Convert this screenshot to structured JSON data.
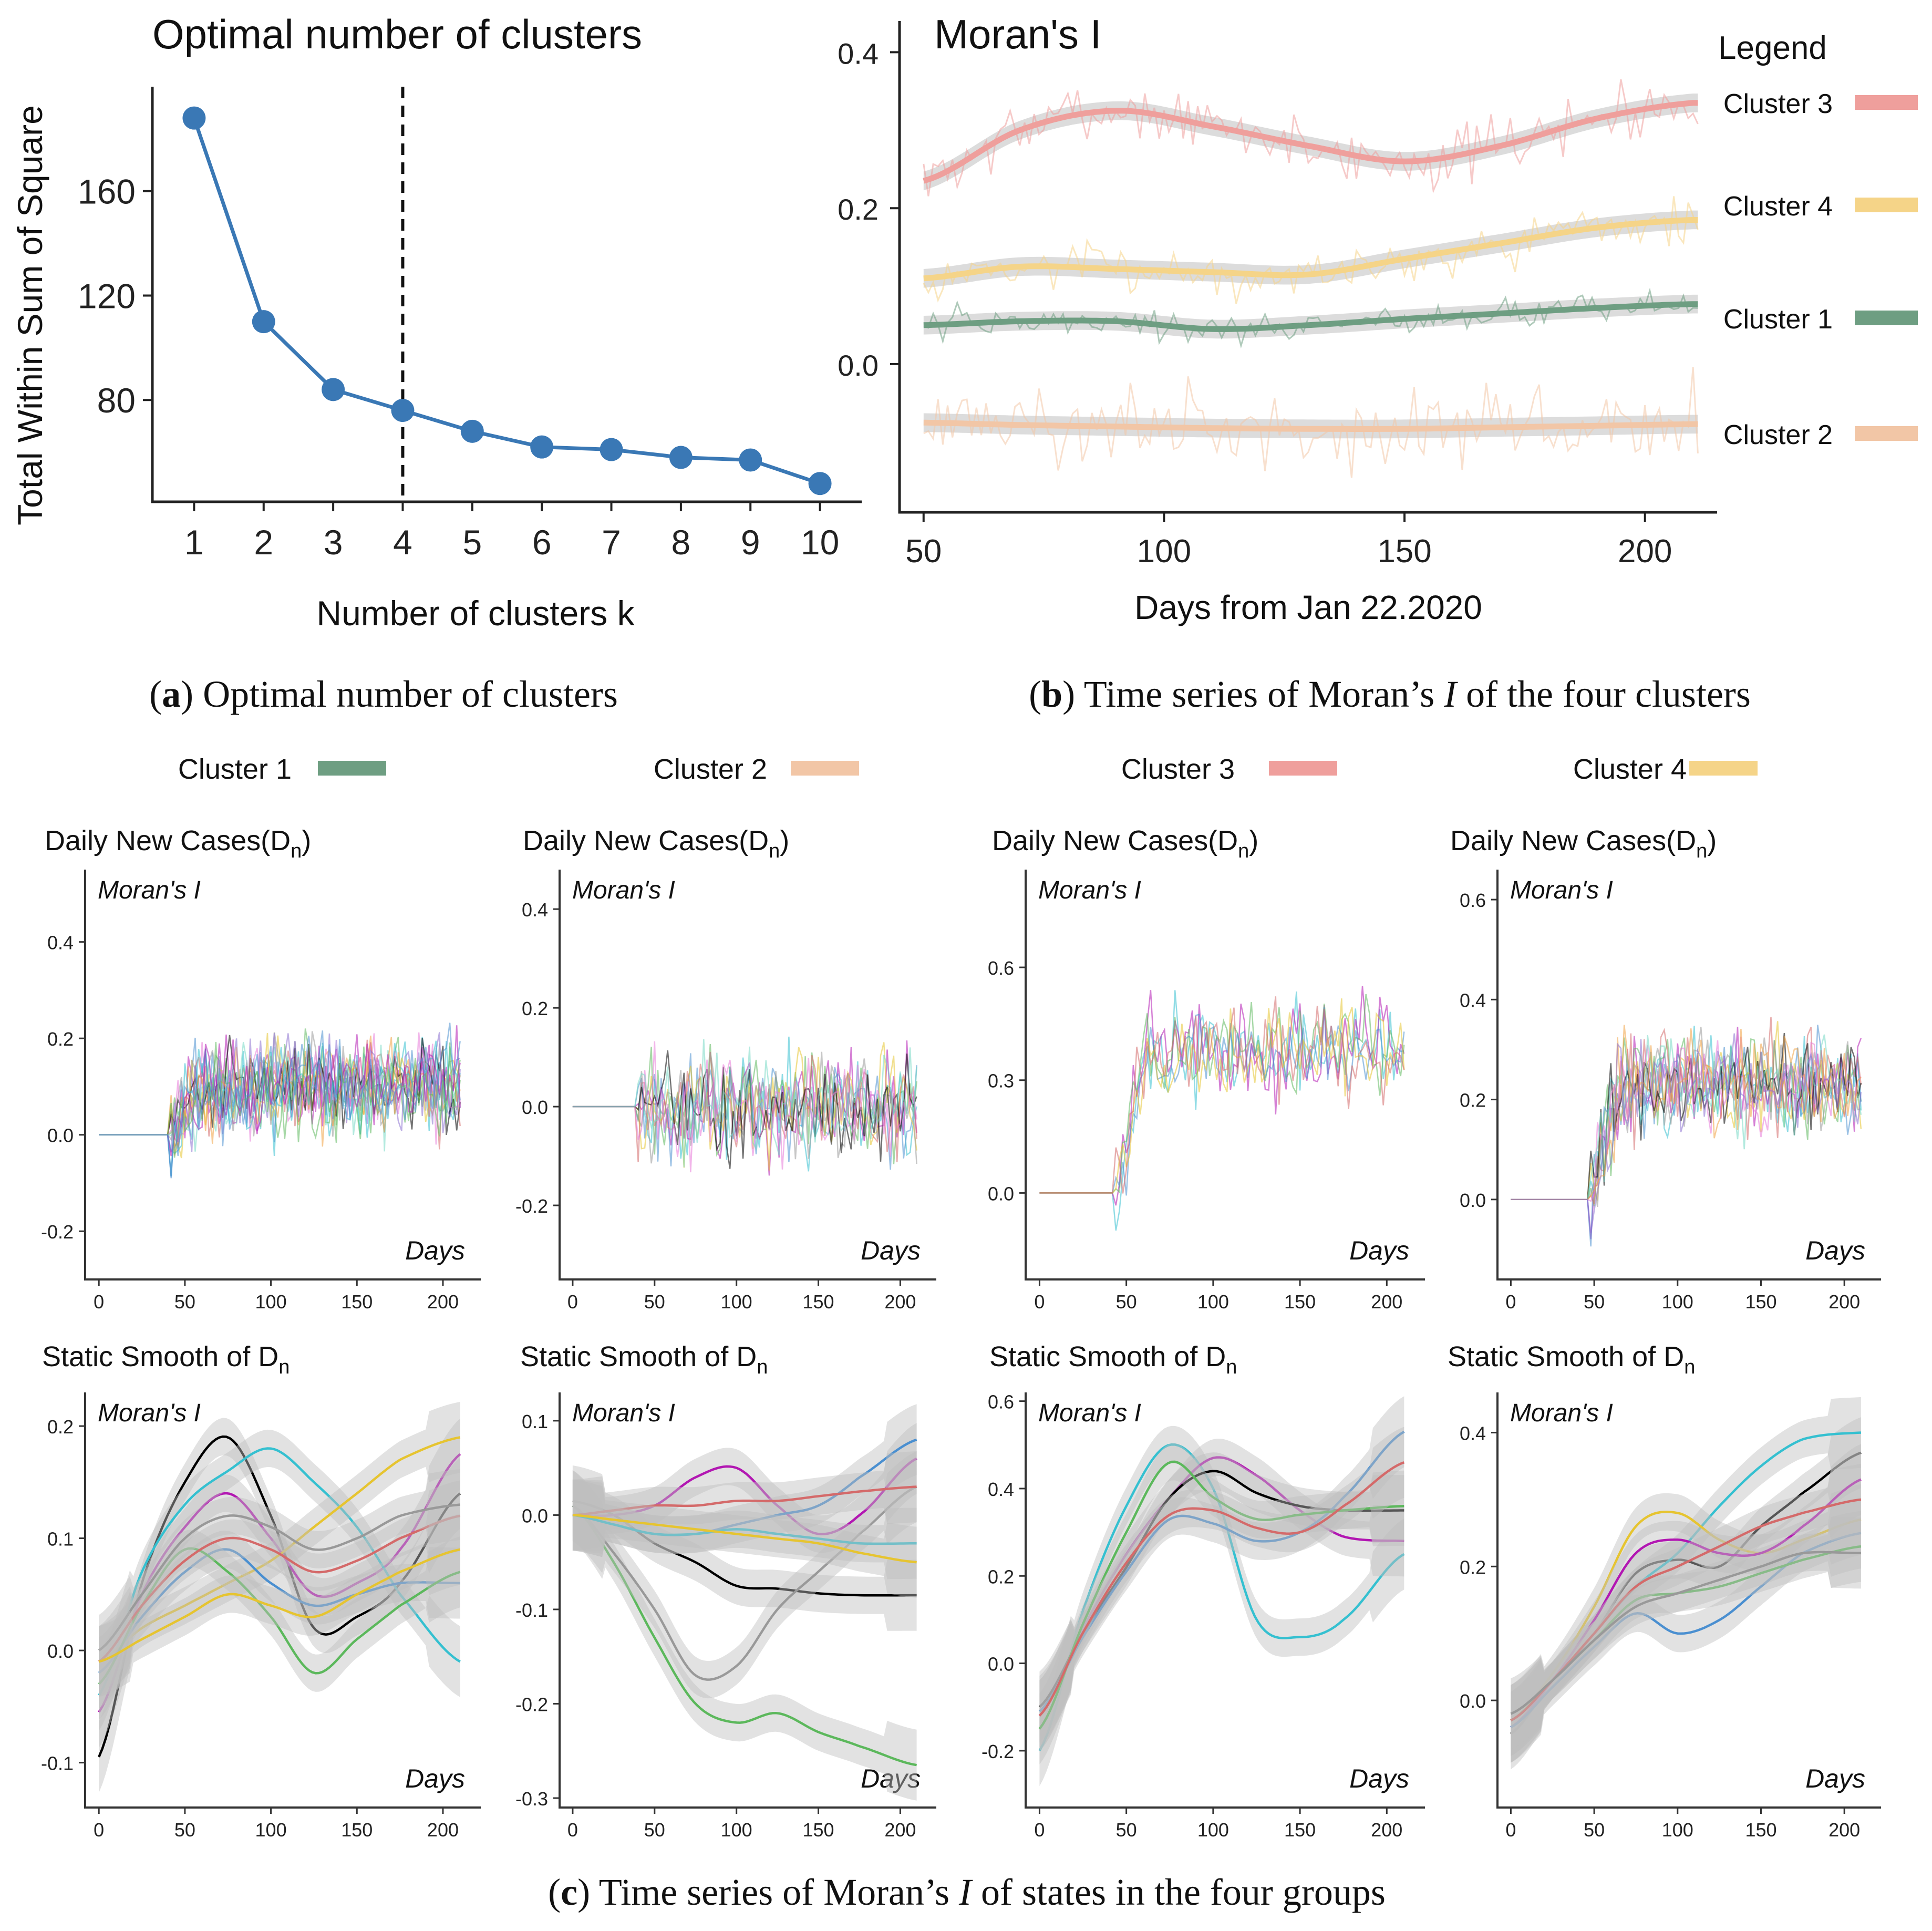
{
  "caption_a": {
    "letter": "a",
    "text": "Optimal number of clusters"
  },
  "caption_b": {
    "letter": "b",
    "pre": "Time series of Moran’s",
    "var": "I",
    "post": "of the four clusters"
  },
  "caption_c": {
    "letter": "c",
    "pre": "Time series of Moran’s",
    "var": "I",
    "post": "of states in the four groups"
  },
  "colors": {
    "cluster1": "#6e9e82",
    "cluster2": "#f2c6a6",
    "cluster3": "#ef9f9c",
    "cluster4": "#f5d488",
    "elbow": "#3a78b5",
    "band": "#bfbfbf"
  },
  "top_legend": [
    {
      "label": "Cluster 1",
      "color": "#6e9e82"
    },
    {
      "label": "Cluster 2",
      "color": "#f2c6a6"
    },
    {
      "label": "Cluster 3",
      "color": "#ef9f9c"
    },
    {
      "label": "Cluster 4",
      "color": "#f5d488"
    }
  ],
  "chart_data": [
    {
      "id": "elbow",
      "type": "line",
      "title": "Optimal number of clusters",
      "xlabel": "Number of clusters k",
      "ylabel": "Total Within Sum of Square",
      "x": [
        1,
        2,
        3,
        4,
        5,
        6,
        7,
        8,
        9,
        10
      ],
      "values": [
        188,
        110,
        84,
        76,
        68,
        62,
        61,
        58,
        57,
        48
      ],
      "xlim": [
        0.4,
        10.6
      ],
      "ylim": [
        41,
        200
      ],
      "yticks": [
        80,
        120,
        160
      ],
      "xticks": [
        1,
        2,
        3,
        4,
        5,
        6,
        7,
        8,
        9,
        10
      ],
      "optimal_k": 4
    },
    {
      "id": "moran_clusters",
      "type": "line",
      "title": "Moran's I",
      "xlabel": "Days from Jan 22.2020",
      "ylabel": "",
      "xlim": [
        45,
        215
      ],
      "ylim": [
        -0.19,
        0.44
      ],
      "xticks": [
        50,
        100,
        150,
        200
      ],
      "yticks": [
        0.0,
        0.2,
        0.4
      ],
      "ytick_labels": [
        "0.0",
        "0.2",
        "0.4"
      ],
      "legend_title": "Legend",
      "legend": [
        "Cluster 3",
        "Cluster 4",
        "Cluster 1",
        "Cluster 2"
      ],
      "series": [
        {
          "name": "Cluster 3",
          "color": "#ef9f9c",
          "x": [
            50,
            70,
            90,
            110,
            130,
            150,
            170,
            190,
            210
          ],
          "values": [
            0.235,
            0.3,
            0.325,
            0.305,
            0.28,
            0.26,
            0.28,
            0.315,
            0.335
          ],
          "noise": 0.035
        },
        {
          "name": "Cluster 4",
          "color": "#f5d488",
          "x": [
            50,
            70,
            90,
            110,
            130,
            150,
            170,
            190,
            210
          ],
          "values": [
            0.11,
            0.125,
            0.122,
            0.118,
            0.115,
            0.135,
            0.155,
            0.175,
            0.185
          ],
          "noise": 0.03
        },
        {
          "name": "Cluster 1",
          "color": "#6e9e82",
          "x": [
            50,
            70,
            90,
            110,
            130,
            150,
            170,
            190,
            210
          ],
          "values": [
            0.05,
            0.055,
            0.055,
            0.045,
            0.05,
            0.058,
            0.065,
            0.072,
            0.077
          ],
          "noise": 0.018
        },
        {
          "name": "Cluster 2",
          "color": "#f2c6a6",
          "x": [
            50,
            70,
            90,
            110,
            130,
            150,
            170,
            190,
            210
          ],
          "values": [
            -0.075,
            -0.078,
            -0.08,
            -0.082,
            -0.083,
            -0.083,
            -0.081,
            -0.079,
            -0.077
          ],
          "noise": 0.05
        }
      ]
    },
    {
      "id": "dn_c1",
      "type": "line",
      "title": "Daily New Cases(D",
      "sub": "n",
      "close": ")",
      "corner_label": "Moran's I",
      "axis_note": "Days",
      "xlim": [
        -8,
        222
      ],
      "ylim": [
        -0.3,
        0.55
      ],
      "xticks": [
        0,
        50,
        100,
        150,
        200
      ],
      "yticks": [
        -0.2,
        0.0,
        0.2,
        0.4
      ],
      "ytick_labels": [
        "-0.2",
        "0.0",
        "0.2",
        "0.4"
      ],
      "start_day": 42,
      "mean": 0.1,
      "spread": 0.09,
      "n_series": 16,
      "seed": 11
    },
    {
      "id": "dn_c2",
      "type": "line",
      "title": "Daily New Cases(D",
      "sub": "n",
      "close": ")",
      "corner_label": "Moran's I",
      "axis_note": "Days",
      "xlim": [
        -8,
        222
      ],
      "ylim": [
        -0.35,
        0.48
      ],
      "xticks": [
        0,
        50,
        100,
        150,
        200
      ],
      "yticks": [
        -0.2,
        0.0,
        0.2,
        0.4
      ],
      "ytick_labels": [
        "-0.2",
        "0.0",
        "0.2",
        "0.4"
      ],
      "start_day": 40,
      "mean": 0.0,
      "spread": 0.1,
      "n_series": 10,
      "seed": 23
    },
    {
      "id": "dn_c3",
      "type": "line",
      "title": "Daily New Cases(D",
      "sub": "n",
      "close": ")",
      "corner_label": "Moran's I",
      "axis_note": "Days",
      "xlim": [
        -8,
        222
      ],
      "ylim": [
        -0.23,
        0.86
      ],
      "xticks": [
        0,
        50,
        100,
        150,
        200
      ],
      "yticks": [
        0.0,
        0.3,
        0.6
      ],
      "ytick_labels": [
        "0.0",
        "0.3",
        "0.6"
      ],
      "start_day": 44,
      "mean": 0.38,
      "spread": 0.12,
      "n_series": 6,
      "seed": 37
    },
    {
      "id": "dn_c4",
      "type": "line",
      "title": "Daily New Cases(D",
      "sub": "n",
      "close": ")",
      "corner_label": "Moran's I",
      "axis_note": "Days",
      "xlim": [
        -8,
        222
      ],
      "ylim": [
        -0.16,
        0.66
      ],
      "xticks": [
        0,
        50,
        100,
        150,
        200
      ],
      "yticks": [
        0.0,
        0.2,
        0.4,
        0.6
      ],
      "ytick_labels": [
        "0.0",
        "0.2",
        "0.4",
        "0.6"
      ],
      "start_day": 48,
      "mean": 0.23,
      "spread": 0.09,
      "n_series": 12,
      "seed": 51
    },
    {
      "id": "ss_c1",
      "type": "line",
      "title": "Static Smooth of D",
      "sub": "n",
      "close": "",
      "corner_label": "Moran's I",
      "axis_note": "Days",
      "xlim": [
        -8,
        222
      ],
      "ylim": [
        -0.14,
        0.23
      ],
      "xticks": [
        0,
        50,
        100,
        150,
        200
      ],
      "yticks": [
        -0.1,
        0.0,
        0.1,
        0.2
      ],
      "ytick_labels": [
        "-0.1",
        "0.0",
        "0.1",
        "0.2"
      ],
      "x": [
        0,
        25,
        50,
        75,
        100,
        125,
        150,
        175,
        210
      ],
      "series": [
        {
          "color": "#000000",
          "values": [
            -0.095,
            0.06,
            0.15,
            0.19,
            0.12,
            0.02,
            0.03,
            0.06,
            0.14
          ]
        },
        {
          "color": "#b217b2",
          "values": [
            -0.055,
            0.05,
            0.11,
            0.14,
            0.1,
            0.05,
            0.06,
            0.09,
            0.175
          ]
        },
        {
          "color": "#35c0d0",
          "values": [
            -0.04,
            0.07,
            0.13,
            0.16,
            0.18,
            0.15,
            0.11,
            0.05,
            -0.01
          ]
        },
        {
          "color": "#e6c430",
          "values": [
            -0.01,
            0.02,
            0.04,
            0.06,
            0.08,
            0.11,
            0.14,
            0.17,
            0.19
          ]
        },
        {
          "color": "#4a8fd0",
          "values": [
            -0.02,
            0.03,
            0.07,
            0.09,
            0.06,
            0.04,
            0.05,
            0.06,
            0.06
          ]
        },
        {
          "color": "#5cb85c",
          "values": [
            -0.03,
            0.04,
            0.09,
            0.07,
            0.03,
            -0.02,
            0.01,
            0.04,
            0.07
          ]
        },
        {
          "color": "#d46a6a",
          "values": [
            -0.01,
            0.04,
            0.08,
            0.1,
            0.09,
            0.07,
            0.08,
            0.1,
            0.12
          ]
        },
        {
          "color": "#999999",
          "values": [
            0.0,
            0.05,
            0.1,
            0.12,
            0.11,
            0.09,
            0.1,
            0.12,
            0.13
          ]
        },
        {
          "color": "#e6c430",
          "values": [
            -0.01,
            0.01,
            0.03,
            0.05,
            0.04,
            0.03,
            0.05,
            0.07,
            0.09
          ]
        }
      ]
    },
    {
      "id": "ss_c2",
      "type": "line",
      "title": "Static Smooth of D",
      "sub": "n",
      "close": "",
      "corner_label": "Moran's I",
      "axis_note": "Days",
      "xlim": [
        -8,
        222
      ],
      "ylim": [
        -0.31,
        0.13
      ],
      "xticks": [
        0,
        50,
        100,
        150,
        200
      ],
      "yticks": [
        -0.3,
        -0.2,
        -0.1,
        0.0,
        0.1
      ],
      "ytick_labels": [
        "-0.3",
        "-0.2",
        "-0.1",
        "0.0",
        "0.1"
      ],
      "x": [
        0,
        25,
        50,
        75,
        100,
        125,
        150,
        175,
        210
      ],
      "series": [
        {
          "color": "#000000",
          "values": [
            0.015,
            0.0,
            -0.03,
            -0.05,
            -0.075,
            -0.078,
            -0.083,
            -0.085,
            -0.085
          ]
        },
        {
          "color": "#5cb85c",
          "values": [
            0.01,
            -0.05,
            -0.13,
            -0.2,
            -0.22,
            -0.21,
            -0.23,
            -0.245,
            -0.265
          ]
        },
        {
          "color": "#999999",
          "values": [
            0.01,
            -0.04,
            -0.1,
            -0.17,
            -0.16,
            -0.1,
            -0.06,
            -0.02,
            0.03
          ]
        },
        {
          "color": "#b217b2",
          "values": [
            0.0,
            0.0,
            0.01,
            0.04,
            0.05,
            0.01,
            -0.02,
            0.0,
            0.06
          ]
        },
        {
          "color": "#4a8fd0",
          "values": [
            0.0,
            -0.01,
            -0.02,
            -0.02,
            -0.01,
            0.0,
            0.01,
            0.04,
            0.08
          ]
        },
        {
          "color": "#d46a6a",
          "values": [
            0.0,
            0.005,
            0.01,
            0.01,
            0.015,
            0.015,
            0.02,
            0.025,
            0.03
          ]
        },
        {
          "color": "#35c0d0",
          "values": [
            0.0,
            -0.01,
            -0.02,
            -0.02,
            -0.015,
            -0.02,
            -0.025,
            -0.03,
            -0.03
          ]
        },
        {
          "color": "#e6c430",
          "values": [
            0.0,
            -0.005,
            -0.01,
            -0.015,
            -0.02,
            -0.025,
            -0.03,
            -0.04,
            -0.05
          ]
        }
      ]
    },
    {
      "id": "ss_c3",
      "type": "line",
      "title": "Static Smooth of D",
      "sub": "n",
      "close": "",
      "corner_label": "Moran's I",
      "axis_note": "Days",
      "xlim": [
        -8,
        222
      ],
      "ylim": [
        -0.33,
        0.62
      ],
      "xticks": [
        0,
        50,
        100,
        150,
        200
      ],
      "yticks": [
        -0.2,
        0.0,
        0.2,
        0.4,
        0.6
      ],
      "ytick_labels": [
        "-0.2",
        "0.0",
        "0.2",
        "0.4",
        "0.6"
      ],
      "x": [
        0,
        25,
        50,
        75,
        100,
        125,
        150,
        175,
        210
      ],
      "series": [
        {
          "color": "#35c0d0",
          "values": [
            -0.2,
            0.12,
            0.36,
            0.5,
            0.4,
            0.1,
            0.06,
            0.1,
            0.25
          ]
        },
        {
          "color": "#b217b2",
          "values": [
            -0.12,
            0.08,
            0.25,
            0.38,
            0.47,
            0.43,
            0.35,
            0.29,
            0.28
          ]
        },
        {
          "color": "#000000",
          "values": [
            -0.1,
            0.07,
            0.22,
            0.38,
            0.44,
            0.39,
            0.36,
            0.35,
            0.35
          ]
        },
        {
          "color": "#4a8fd0",
          "values": [
            -0.11,
            0.06,
            0.21,
            0.33,
            0.32,
            0.28,
            0.3,
            0.38,
            0.53
          ]
        },
        {
          "color": "#5cb85c",
          "values": [
            -0.15,
            0.09,
            0.3,
            0.46,
            0.38,
            0.33,
            0.34,
            0.35,
            0.36
          ]
        },
        {
          "color": "#d46a6a",
          "values": [
            -0.12,
            0.07,
            0.23,
            0.34,
            0.35,
            0.31,
            0.3,
            0.36,
            0.46
          ]
        }
      ]
    },
    {
      "id": "ss_c4",
      "type": "line",
      "title": "Static Smooth of D",
      "sub": "n",
      "close": "",
      "corner_label": "Moran's I",
      "axis_note": "Days",
      "xlim": [
        -8,
        222
      ],
      "ylim": [
        -0.16,
        0.46
      ],
      "xticks": [
        0,
        50,
        100,
        150,
        200
      ],
      "yticks": [
        0.0,
        0.2,
        0.4
      ],
      "ytick_labels": [
        "0.0",
        "0.2",
        "0.4"
      ],
      "x": [
        0,
        25,
        50,
        75,
        100,
        125,
        150,
        175,
        210
      ],
      "series": [
        {
          "color": "#000000",
          "values": [
            -0.05,
            0.03,
            0.1,
            0.19,
            0.21,
            0.2,
            0.26,
            0.31,
            0.37
          ]
        },
        {
          "color": "#35c0d0",
          "values": [
            -0.04,
            0.03,
            0.1,
            0.17,
            0.22,
            0.29,
            0.35,
            0.39,
            0.4
          ]
        },
        {
          "color": "#e6c430",
          "values": [
            -0.03,
            0.04,
            0.14,
            0.26,
            0.28,
            0.24,
            0.22,
            0.24,
            0.27
          ]
        },
        {
          "color": "#b217b2",
          "values": [
            -0.04,
            0.03,
            0.12,
            0.22,
            0.24,
            0.22,
            0.22,
            0.26,
            0.33
          ]
        },
        {
          "color": "#4a8fd0",
          "values": [
            -0.04,
            0.02,
            0.08,
            0.13,
            0.1,
            0.12,
            0.17,
            0.22,
            0.25
          ]
        },
        {
          "color": "#5cb85c",
          "values": [
            -0.03,
            0.03,
            0.09,
            0.15,
            0.16,
            0.17,
            0.19,
            0.21,
            0.23
          ]
        },
        {
          "color": "#d46a6a",
          "values": [
            -0.03,
            0.03,
            0.1,
            0.17,
            0.2,
            0.23,
            0.26,
            0.28,
            0.3
          ]
        },
        {
          "color": "#999999",
          "values": [
            -0.02,
            0.03,
            0.09,
            0.14,
            0.16,
            0.18,
            0.2,
            0.22,
            0.22
          ]
        }
      ]
    }
  ]
}
